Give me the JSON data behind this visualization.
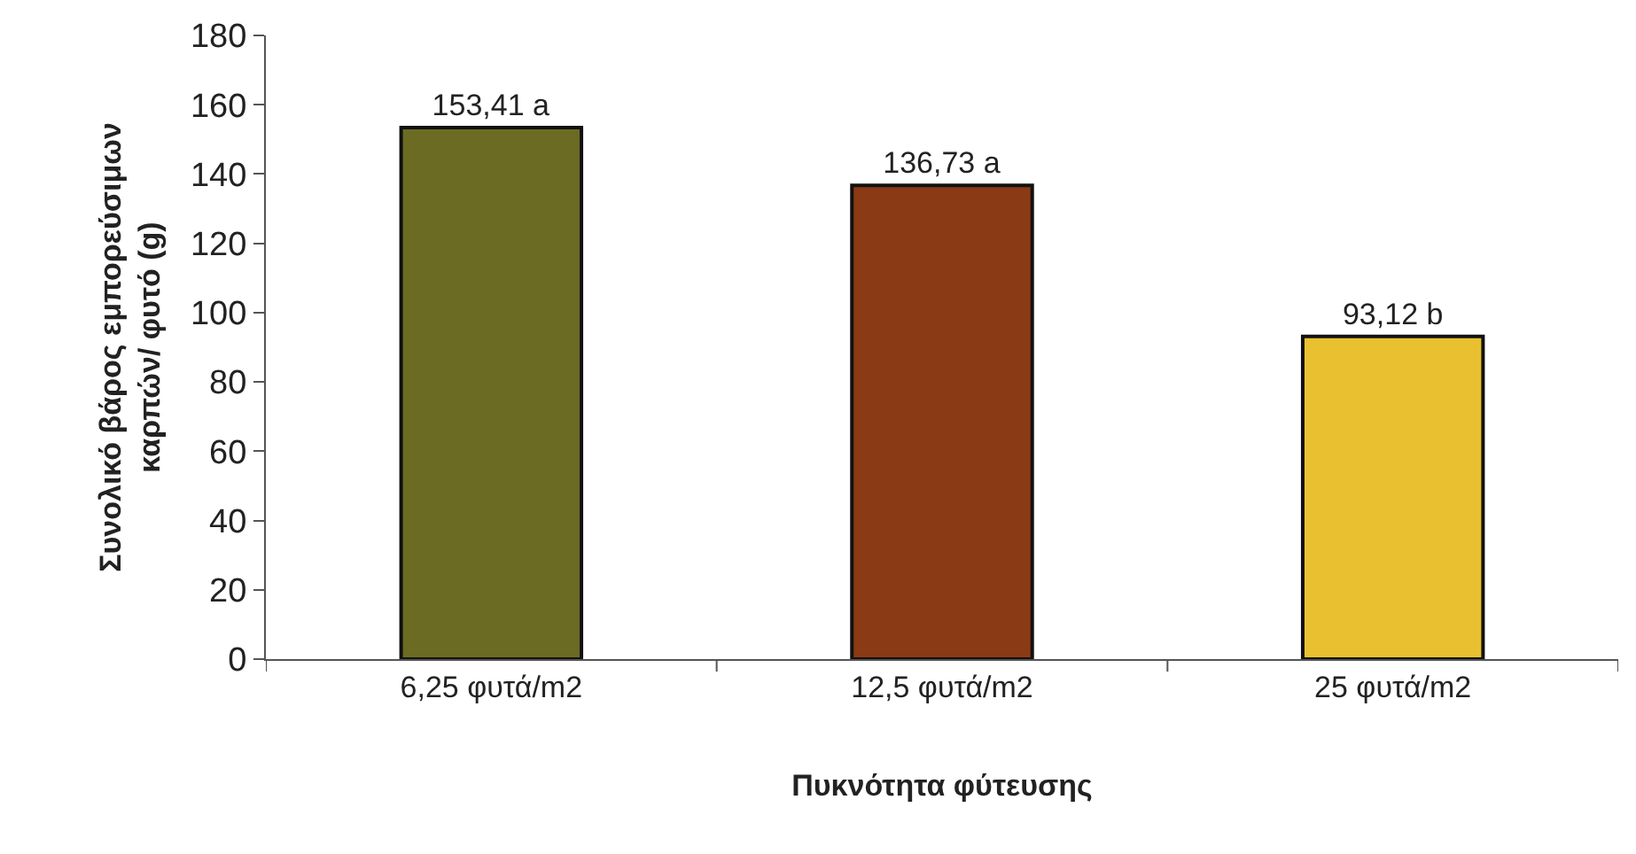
{
  "chart_data": {
    "type": "bar",
    "xlabel": "Πυκνότητα φύτευσης",
    "ylabel": "Συνολικό βάρος εμπορεύσιμων\nκαρπών/ φυτό (g)",
    "categories": [
      "6,25 φυτά/m2",
      "12,5 φυτά/m2",
      "25 φυτά/m2"
    ],
    "values": [
      153.41,
      136.73,
      93.12
    ],
    "colors": [
      "#6b6b24",
      "#8a3a14",
      "#e8c030"
    ],
    "value_labels": [
      "153,41 a",
      "136,73 a",
      "93,12 b"
    ],
    "ylim": [
      0,
      180
    ],
    "yticks": [
      0,
      20,
      40,
      60,
      80,
      100,
      120,
      140,
      160,
      180
    ]
  }
}
